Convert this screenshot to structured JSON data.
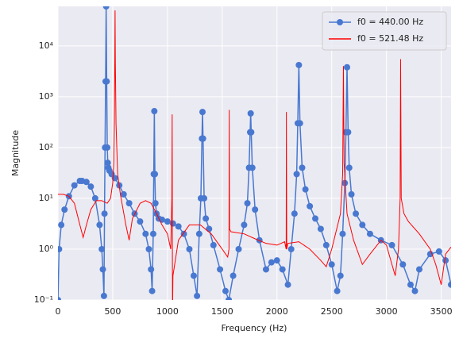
{
  "chart_data": {
    "type": "line",
    "xlabel": "Frequency (Hz)",
    "ylabel": "Magnitude",
    "xlim": [
      0,
      3590
    ],
    "xticks": [
      0,
      500,
      1000,
      1500,
      2000,
      2500,
      3000,
      3500
    ],
    "ylim": [
      0.1,
      60000
    ],
    "yscale": "log",
    "yticks": [
      {
        "value": 0.1,
        "label": "10⁻¹"
      },
      {
        "value": 1,
        "label": "10⁰"
      },
      {
        "value": 10,
        "label": "10¹"
      },
      {
        "value": 100,
        "label": "10²"
      },
      {
        "value": 1000,
        "label": "10³"
      },
      {
        "value": 10000,
        "label": "10⁴"
      }
    ],
    "grid": true,
    "legend": "upper right",
    "series": [
      {
        "name": "f0 = 440.00 Hz",
        "color": "#4878d0",
        "marker": "o",
        "x": [
          0,
          10,
          30,
          60,
          100,
          150,
          200,
          220,
          260,
          300,
          340,
          380,
          400,
          410,
          420,
          425,
          430,
          435,
          440,
          445,
          450,
          455,
          460,
          470,
          490,
          520,
          560,
          600,
          650,
          700,
          750,
          800,
          830,
          850,
          860,
          870,
          875,
          880,
          885,
          890,
          900,
          920,
          950,
          1000,
          1050,
          1100,
          1150,
          1200,
          1240,
          1270,
          1290,
          1305,
          1315,
          1320,
          1325,
          1335,
          1350,
          1380,
          1420,
          1480,
          1530,
          1560,
          1600,
          1650,
          1700,
          1730,
          1745,
          1755,
          1760,
          1765,
          1775,
          1800,
          1840,
          1900,
          1950,
          2000,
          2050,
          2100,
          2130,
          2160,
          2180,
          2190,
          2200,
          2210,
          2230,
          2260,
          2300,
          2350,
          2400,
          2450,
          2500,
          2550,
          2580,
          2600,
          2620,
          2630,
          2640,
          2650,
          2660,
          2680,
          2720,
          2780,
          2850,
          2950,
          3050,
          3150,
          3220,
          3260,
          3300,
          3400,
          3480,
          3540,
          3590
        ],
        "values": [
          0.1,
          1,
          3,
          6,
          11,
          18,
          22,
          22,
          21,
          17,
          10,
          3,
          1,
          0.4,
          0.12,
          5,
          100,
          2000,
          60000,
          2000,
          100,
          50,
          40,
          35,
          30,
          25,
          18,
          12,
          8,
          5,
          3.5,
          2,
          1,
          0.4,
          0.15,
          2,
          30,
          520,
          30,
          8,
          5,
          4,
          3.8,
          3.5,
          3.2,
          2.8,
          2,
          1,
          0.3,
          0.12,
          2,
          10,
          150,
          500,
          150,
          10,
          4,
          2.5,
          1.2,
          0.4,
          0.15,
          0.1,
          0.3,
          1,
          3,
          8,
          40,
          200,
          470,
          200,
          40,
          6,
          1.5,
          0.4,
          0.55,
          0.6,
          0.4,
          0.2,
          1,
          5,
          30,
          300,
          4200,
          300,
          40,
          15,
          7,
          4,
          2.5,
          1.2,
          0.5,
          0.15,
          0.3,
          2,
          20,
          200,
          3800,
          200,
          40,
          12,
          5,
          3,
          2,
          1.5,
          1.2,
          0.5,
          0.2,
          0.15,
          0.4,
          0.8,
          0.9,
          0.6,
          0.2
        ]
      },
      {
        "name": "f0 = 521.48 Hz",
        "color": "#ff0000",
        "x": [
          0,
          50,
          100,
          150,
          200,
          230,
          260,
          300,
          350,
          400,
          450,
          480,
          500,
          510,
          515,
          519,
          521.48,
          524,
          530,
          545,
          570,
          620,
          650,
          680,
          750,
          800,
          850,
          900,
          950,
          1000,
          1030,
          1040,
          1043,
          1046,
          1050,
          1100,
          1200,
          1300,
          1400,
          1500,
          1550,
          1562,
          1564,
          1567,
          1580,
          1700,
          1800,
          1900,
          2000,
          2070,
          2084,
          2086,
          2089,
          2100,
          2200,
          2300,
          2400,
          2450,
          2500,
          2580,
          2600,
          2607,
          2613,
          2640,
          2700,
          2780,
          2850,
          2950,
          3000,
          3050,
          3080,
          3110,
          3125,
          3129,
          3135,
          3160,
          3200,
          3300,
          3400,
          3450,
          3500,
          3540,
          3590
        ],
        "values": [
          12,
          12,
          11,
          8,
          3,
          1.7,
          3,
          6,
          9,
          9,
          8,
          10,
          20,
          50,
          300,
          5000,
          50000,
          5000,
          300,
          30,
          12,
          3,
          1.5,
          4,
          8,
          9,
          8,
          5,
          3,
          2,
          1,
          10,
          450,
          0.05,
          0.3,
          1.5,
          3,
          3,
          2,
          1,
          0.7,
          1,
          550,
          2.5,
          2.2,
          2,
          1.6,
          1.3,
          1.2,
          1.4,
          1,
          500,
          1,
          1.3,
          1.4,
          1,
          0.6,
          0.45,
          1,
          5,
          30,
          4000,
          50,
          5,
          1.5,
          0.5,
          0.8,
          1.5,
          1.2,
          0.5,
          0.3,
          1,
          10,
          5500,
          10,
          5,
          3.5,
          2,
          1,
          0.5,
          0.2,
          0.8,
          1.1
        ]
      }
    ]
  }
}
